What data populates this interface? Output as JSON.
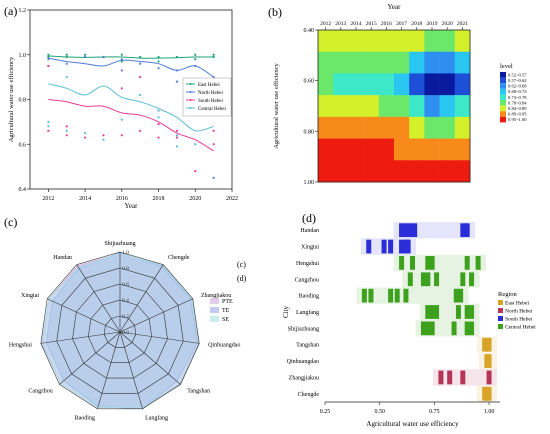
{
  "panels": {
    "a": "(a)",
    "b": "(b)",
    "c": "(c)",
    "d": "(d)",
    "c_side": "(c)",
    "d_side": "(d)"
  },
  "chart_data": [
    {
      "panel": "a",
      "type": "scatter",
      "title": "",
      "xlabel": "Year",
      "ylabel": "Agricultural water use efficiency",
      "xlim": [
        2011,
        2022
      ],
      "ylim": [
        0.4,
        1.2
      ],
      "xticks": [
        2012,
        2014,
        2016,
        2018,
        2020,
        2022
      ],
      "yticks": [
        0.4,
        0.6,
        0.8,
        1.0,
        1.2
      ],
      "legend_position": "right",
      "series": [
        {
          "name": "East Hebei",
          "color": "#1aa37a",
          "curve": [
            [
              2012,
              0.995
            ],
            [
              2013,
              0.99
            ],
            [
              2014,
              0.988
            ],
            [
              2015,
              0.99
            ],
            [
              2016,
              0.99
            ],
            [
              2017,
              0.985
            ],
            [
              2018,
              0.985
            ],
            [
              2019,
              0.987
            ],
            [
              2020,
              0.99
            ],
            [
              2021,
              0.99
            ]
          ],
          "points": [
            [
              2012,
              1.0
            ],
            [
              2012,
              0.99
            ],
            [
              2013,
              1.0
            ],
            [
              2013,
              0.99
            ],
            [
              2014,
              1.0
            ],
            [
              2015,
              0.99
            ],
            [
              2016,
              1.0
            ],
            [
              2016,
              0.97
            ],
            [
              2017,
              0.99
            ],
            [
              2018,
              0.99
            ],
            [
              2018,
              0.97
            ],
            [
              2019,
              0.99
            ],
            [
              2020,
              1.0
            ],
            [
              2020,
              0.98
            ],
            [
              2021,
              1.0
            ],
            [
              2021,
              0.99
            ]
          ]
        },
        {
          "name": "North Hebei",
          "color": "#4d7dd8",
          "curve": [
            [
              2012,
              0.985
            ],
            [
              2013,
              0.97
            ],
            [
              2014,
              0.96
            ],
            [
              2015,
              0.95
            ],
            [
              2016,
              0.975
            ],
            [
              2017,
              0.97
            ],
            [
              2018,
              0.96
            ],
            [
              2019,
              0.93
            ],
            [
              2020,
              0.95
            ],
            [
              2021,
              0.9
            ]
          ],
          "points": [
            [
              2012,
              0.98
            ],
            [
              2012,
              0.95
            ],
            [
              2013,
              0.96
            ],
            [
              2014,
              0.99
            ],
            [
              2015,
              0.99
            ],
            [
              2016,
              0.98
            ],
            [
              2016,
              0.93
            ],
            [
              2017,
              0.96
            ],
            [
              2018,
              0.94
            ],
            [
              2019,
              0.93
            ],
            [
              2019,
              0.88
            ],
            [
              2020,
              0.95
            ],
            [
              2021,
              0.9
            ],
            [
              2021,
              0.45
            ]
          ]
        },
        {
          "name": "South Hebei",
          "color": "#e8399a",
          "curve": [
            [
              2012,
              0.8
            ],
            [
              2013,
              0.79
            ],
            [
              2014,
              0.77
            ],
            [
              2015,
              0.77
            ],
            [
              2016,
              0.74
            ],
            [
              2017,
              0.73
            ],
            [
              2018,
              0.7
            ],
            [
              2019,
              0.65
            ],
            [
              2020,
              0.62
            ],
            [
              2021,
              0.57
            ]
          ],
          "points": [
            [
              2012,
              0.95
            ],
            [
              2012,
              0.66
            ],
            [
              2013,
              0.68
            ],
            [
              2013,
              0.64
            ],
            [
              2014,
              0.63
            ],
            [
              2015,
              0.64
            ],
            [
              2016,
              0.64
            ],
            [
              2016,
              0.85
            ],
            [
              2017,
              0.9
            ],
            [
              2017,
              0.66
            ],
            [
              2018,
              0.69
            ],
            [
              2018,
              0.63
            ],
            [
              2019,
              0.66
            ],
            [
              2019,
              0.63
            ],
            [
              2020,
              0.48
            ],
            [
              2021,
              0.66
            ],
            [
              2021,
              0.6
            ]
          ]
        },
        {
          "name": "Central Hebei",
          "color": "#5bbcd6",
          "curve": [
            [
              2012,
              0.87
            ],
            [
              2013,
              0.85
            ],
            [
              2014,
              0.82
            ],
            [
              2015,
              0.86
            ],
            [
              2016,
              0.81
            ],
            [
              2017,
              0.79
            ],
            [
              2018,
              0.76
            ],
            [
              2019,
              0.72
            ],
            [
              2020,
              0.66
            ],
            [
              2021,
              0.68
            ]
          ],
          "points": [
            [
              2012,
              0.7
            ],
            [
              2012,
              0.68
            ],
            [
              2013,
              0.9
            ],
            [
              2013,
              0.66
            ],
            [
              2014,
              0.65
            ],
            [
              2015,
              0.62
            ],
            [
              2016,
              0.71
            ],
            [
              2017,
              0.82
            ],
            [
              2018,
              0.75
            ],
            [
              2018,
              0.72
            ],
            [
              2019,
              0.59
            ],
            [
              2019,
              0.64
            ],
            [
              2020,
              0.6
            ],
            [
              2021,
              0.8
            ],
            [
              2021,
              0.84
            ],
            [
              2021,
              0.78
            ]
          ]
        }
      ]
    },
    {
      "panel": "b",
      "type": "heatmap",
      "title": "",
      "xlabel": "Year",
      "ylabel": "Agricultural water use efficiency",
      "x": [
        2012,
        2013,
        2014,
        2015,
        2016,
        2017,
        2018,
        2019,
        2020,
        2021
      ],
      "y": [
        0.4,
        0.5,
        0.6,
        0.7,
        0.8,
        0.9,
        1.0
      ],
      "yticks": [
        0.4,
        0.6,
        0.8,
        1.0
      ],
      "z": [
        [
          0.86,
          0.86,
          0.86,
          0.86,
          0.88,
          0.86,
          0.85,
          0.84,
          0.84,
          0.85
        ],
        [
          0.84,
          0.8,
          0.8,
          0.8,
          0.8,
          0.8,
          0.7,
          0.65,
          0.64,
          0.7
        ],
        [
          0.8,
          0.76,
          0.75,
          0.74,
          0.74,
          0.7,
          0.62,
          0.55,
          0.54,
          0.62
        ],
        [
          0.87,
          0.86,
          0.85,
          0.85,
          0.84,
          0.8,
          0.74,
          0.68,
          0.7,
          0.75
        ],
        [
          0.95,
          0.95,
          0.94,
          0.94,
          0.92,
          0.9,
          0.86,
          0.84,
          0.83,
          0.86
        ],
        [
          0.97,
          0.97,
          0.97,
          0.97,
          0.96,
          0.95,
          0.93,
          0.92,
          0.92,
          0.93
        ],
        [
          0.99,
          0.99,
          0.99,
          0.99,
          0.99,
          0.98,
          0.97,
          0.97,
          0.97,
          0.97
        ]
      ],
      "legend_title": "level",
      "levels": [
        {
          "label": "0.52~0.57",
          "color": "#0a1a9e"
        },
        {
          "label": "0.57~0.62",
          "color": "#1e4fd8"
        },
        {
          "label": "0.62~0.68",
          "color": "#2f8ff0"
        },
        {
          "label": "0.68~0.73",
          "color": "#28c6f0"
        },
        {
          "label": "0.73~0.78",
          "color": "#3ce8c8"
        },
        {
          "label": "0.78~0.84",
          "color": "#6be86a"
        },
        {
          "label": "0.84~0.89",
          "color": "#d4f02a"
        },
        {
          "label": "0.89~0.95",
          "color": "#f88a1a"
        },
        {
          "label": "0.95~1.00",
          "color": "#ee1c10"
        }
      ],
      "legend_position": "right"
    },
    {
      "panel": "c",
      "type": "radar",
      "title": "",
      "rticks": [
        0.0,
        0.2,
        0.4,
        0.6,
        0.8,
        1.0
      ],
      "rtick_labels": [
        "0.0",
        "0.2",
        "0.4",
        "0.6",
        "0.8",
        "1.0"
      ],
      "axes": [
        "Shijiazhuang",
        "Chengde",
        "Zhangjiakou",
        "Qinhuangdao",
        "Tangshan",
        "Langfang",
        "Baoding",
        "Cangzhou",
        "Hengshui",
        "Xingtai",
        "Handan"
      ],
      "legend_position": "right",
      "series": [
        {
          "name": "PTE",
          "color": "#d4a8e0",
          "values": [
            0.98,
            0.98,
            0.99,
            1.0,
            0.99,
            0.99,
            0.98,
            0.98,
            0.98,
            0.98,
            0.98
          ]
        },
        {
          "name": "TE",
          "color": "#9aa6e8",
          "values": [
            0.99,
            0.97,
            0.97,
            0.98,
            0.94,
            1.0,
            0.97,
            0.93,
            0.93,
            0.93,
            0.95
          ]
        },
        {
          "name": "SE",
          "color": "#a8dde8",
          "values": [
            0.98,
            0.99,
            0.99,
            1.0,
            1.0,
            0.99,
            0.98,
            0.98,
            0.99,
            0.98,
            0.96
          ]
        }
      ]
    },
    {
      "panel": "d",
      "type": "bar",
      "title": "",
      "xlabel": "Agricultural water use efficiency",
      "ylabel": "City",
      "xlim": [
        0.25,
        1.05
      ],
      "xticks": [
        0.25,
        0.5,
        0.75,
        1.0
      ],
      "xtick_labels": [
        "0.25",
        "0.50",
        "0.75",
        "1.00"
      ],
      "categories": [
        "Handan",
        "Xingtai",
        "Hengshui",
        "Cangzhou",
        "Baoding",
        "Langfang",
        "Shijiazhuang",
        "Tangshan",
        "Qinhuangdao",
        "Zhangjiakou",
        "Chengde"
      ],
      "legend_title": "Region",
      "legend_position": "right",
      "series": [
        {
          "name": "East Hebei",
          "color": "#d8a326",
          "cities": [
            "Tangshan",
            "Qinhuangdao",
            "Chengde"
          ]
        },
        {
          "name": "North Hebei",
          "color": "#b4345a",
          "cities": [
            "Zhangjiakou"
          ]
        },
        {
          "name": "South Hebei",
          "color": "#2b2ed8",
          "cities": [
            "Handan",
            "Xingtai"
          ]
        },
        {
          "name": "Central Hebei",
          "color": "#3ea11e",
          "cities": [
            "Hengshui",
            "Cangzhou",
            "Baoding",
            "Langfang",
            "Shijiazhuang"
          ]
        }
      ],
      "values": {
        "Handan": [
          0.6,
          0.62,
          0.64,
          0.66,
          0.88,
          0.9
        ],
        "Xingtai": [
          0.45,
          0.52,
          0.55,
          0.6,
          0.62,
          0.63
        ],
        "Hengshui": [
          0.6,
          0.65,
          0.72,
          0.74,
          0.9,
          0.95
        ],
        "Cangzhou": [
          0.64,
          0.7,
          0.72,
          0.76,
          0.88,
          0.92
        ],
        "Baoding": [
          0.43,
          0.46,
          0.55,
          0.58,
          0.62,
          0.85,
          0.87
        ],
        "Langfang": [
          0.72,
          0.74,
          0.76,
          0.86,
          0.9,
          0.92
        ],
        "Shijiazhuang": [
          0.7,
          0.72,
          0.74,
          0.84,
          0.9,
          0.92
        ],
        "Tangshan": [
          0.98,
          0.99,
          1.0
        ],
        "Qinhuangdao": [
          0.99,
          1.0
        ],
        "Zhangjiakou": [
          0.78,
          0.82,
          0.88,
          1.0
        ],
        "Chengde": [
          0.98,
          0.99,
          1.0
        ]
      }
    }
  ]
}
